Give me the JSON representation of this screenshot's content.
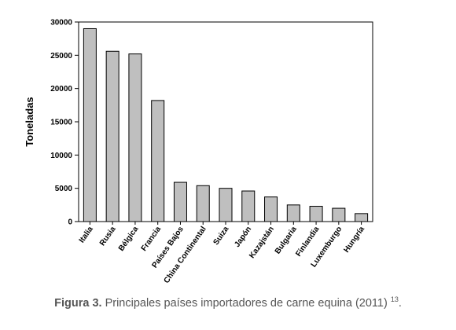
{
  "chart_data": {
    "type": "bar",
    "title": "",
    "xlabel": "",
    "ylabel": "Toneladas",
    "ylim": [
      0,
      30000
    ],
    "yticks": [
      0,
      5000,
      10000,
      15000,
      20000,
      25000,
      30000
    ],
    "grid": false,
    "categories": [
      "Italia",
      "Rusia",
      "Bélgica",
      "Francia",
      "Países Bajos",
      "China Continental",
      "Suiza",
      "Japón",
      "Kazajstán",
      "Bulgaria",
      "Finlandia",
      "Luxemburgo",
      "Hungría"
    ],
    "values": [
      29000,
      25600,
      25200,
      18200,
      5900,
      5400,
      5000,
      4600,
      3700,
      2500,
      2300,
      2000,
      1200
    ],
    "bar_color": "#bfbfbf"
  },
  "caption": {
    "figure_label": "Figura 3.",
    "text": "Principales países importadores de carne equina (2011)",
    "reference": "13",
    "suffix": "."
  }
}
